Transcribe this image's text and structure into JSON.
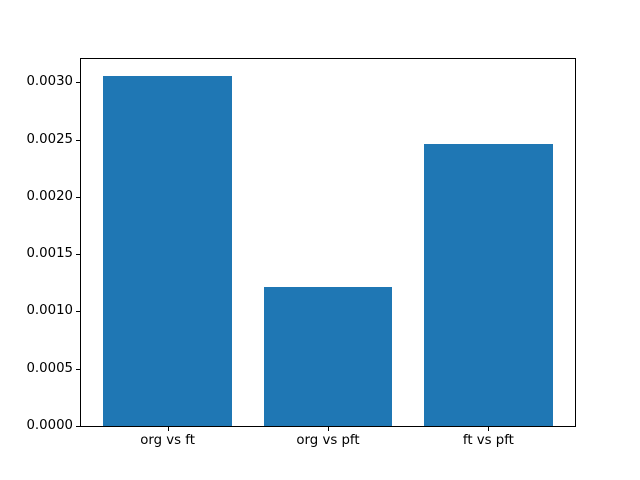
{
  "chart_data": {
    "type": "bar",
    "title": "",
    "xlabel": "",
    "ylabel": "",
    "categories": [
      "org vs ft",
      "org vs pft",
      "ft vs pft"
    ],
    "values": [
      0.00305,
      0.00121,
      0.00246
    ],
    "yticks": [
      0.0,
      0.0005,
      0.001,
      0.0015,
      0.002,
      0.0025,
      0.003
    ],
    "ytick_labels": [
      "0.0000",
      "0.0005",
      "0.0010",
      "0.0015",
      "0.0020",
      "0.0025",
      "0.0030"
    ],
    "ylim": [
      0,
      0.0032025
    ],
    "xlim": [
      -0.54,
      2.54
    ],
    "bar_width": 0.8,
    "bar_color": "#1f77b4",
    "spine_color": "#000000",
    "background_color": "#ffffff",
    "grid": false,
    "legend": null
  }
}
